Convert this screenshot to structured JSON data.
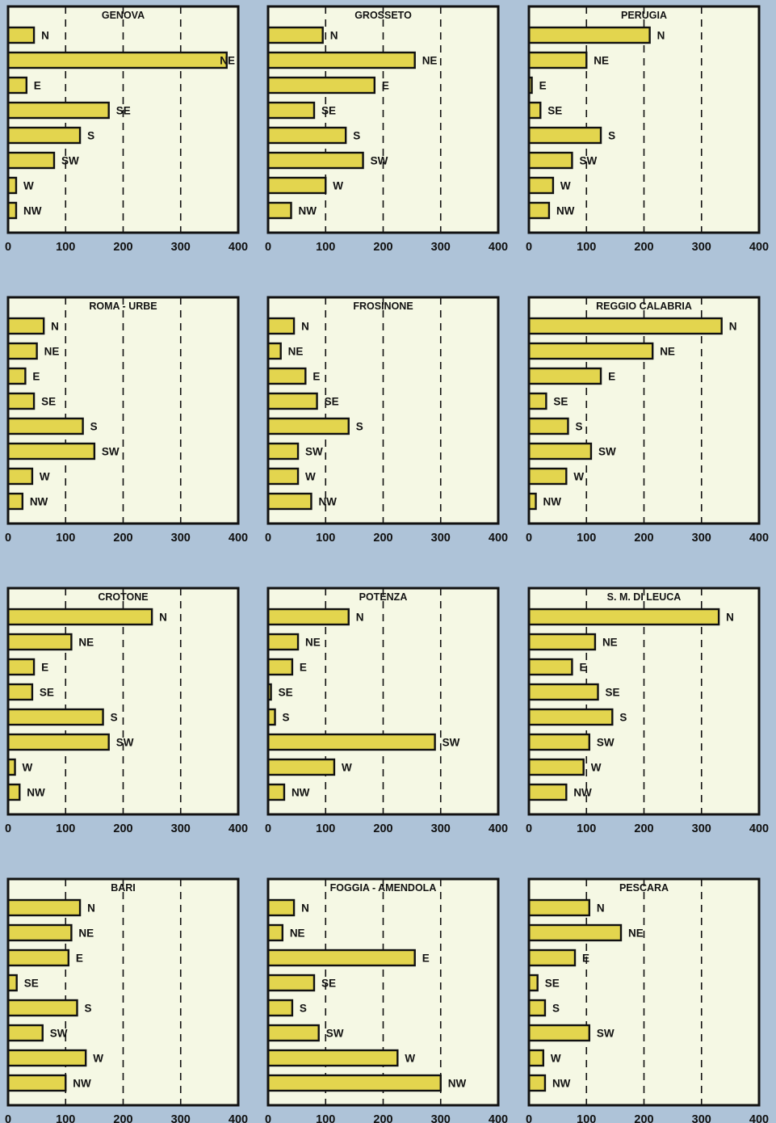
{
  "chart_data": [
    {
      "type": "bar",
      "title": "GENOVA",
      "categories": [
        "N",
        "NE",
        "E",
        "SE",
        "S",
        "SW",
        "W",
        "NW"
      ],
      "values": [
        45,
        380,
        32,
        175,
        125,
        80,
        14,
        14
      ],
      "xlim": [
        0,
        400
      ],
      "xticks": [
        0,
        100,
        200,
        300,
        400
      ],
      "grid": true
    },
    {
      "type": "bar",
      "title": "GROSSETO",
      "categories": [
        "N",
        "NE",
        "E",
        "SE",
        "S",
        "SW",
        "W",
        "NW"
      ],
      "values": [
        95,
        255,
        185,
        80,
        135,
        165,
        100,
        40
      ],
      "xlim": [
        0,
        400
      ],
      "xticks": [
        0,
        100,
        200,
        300,
        400
      ],
      "grid": true
    },
    {
      "type": "bar",
      "title": "PERUGIA",
      "categories": [
        "N",
        "NE",
        "E",
        "SE",
        "S",
        "SW",
        "W",
        "NW"
      ],
      "values": [
        210,
        100,
        5,
        20,
        125,
        75,
        42,
        35
      ],
      "xlim": [
        0,
        400
      ],
      "xticks": [
        0,
        100,
        200,
        300,
        400
      ],
      "grid": true
    },
    {
      "type": "bar",
      "title": "ROMA - URBE",
      "categories": [
        "N",
        "NE",
        "E",
        "SE",
        "S",
        "SW",
        "W",
        "NW"
      ],
      "values": [
        62,
        50,
        30,
        45,
        130,
        150,
        42,
        25
      ],
      "xlim": [
        0,
        400
      ],
      "xticks": [
        0,
        100,
        200,
        300,
        400
      ],
      "grid": true
    },
    {
      "type": "bar",
      "title": "FROSINONE",
      "categories": [
        "N",
        "NE",
        "E",
        "SE",
        "S",
        "SW",
        "W",
        "NW"
      ],
      "values": [
        45,
        22,
        65,
        85,
        140,
        52,
        52,
        75
      ],
      "xlim": [
        0,
        400
      ],
      "xticks": [
        0,
        100,
        200,
        300,
        400
      ],
      "grid": true
    },
    {
      "type": "bar",
      "title": "REGGIO CALABRIA",
      "categories": [
        "N",
        "NE",
        "E",
        "SE",
        "S",
        "SW",
        "W",
        "NW"
      ],
      "values": [
        335,
        215,
        125,
        30,
        68,
        108,
        65,
        12
      ],
      "xlim": [
        0,
        400
      ],
      "xticks": [
        0,
        100,
        200,
        300,
        400
      ],
      "grid": true
    },
    {
      "type": "bar",
      "title": "CROTONE",
      "categories": [
        "N",
        "NE",
        "E",
        "SE",
        "S",
        "SW",
        "W",
        "NW"
      ],
      "values": [
        250,
        110,
        45,
        42,
        165,
        175,
        12,
        20
      ],
      "xlim": [
        0,
        400
      ],
      "xticks": [
        0,
        100,
        200,
        300,
        400
      ],
      "grid": true
    },
    {
      "type": "bar",
      "title": "POTENZA",
      "categories": [
        "N",
        "NE",
        "E",
        "SE",
        "S",
        "SW",
        "W",
        "NW"
      ],
      "values": [
        140,
        52,
        42,
        5,
        12,
        290,
        115,
        28
      ],
      "xlim": [
        0,
        400
      ],
      "xticks": [
        0,
        100,
        200,
        300,
        400
      ],
      "grid": true
    },
    {
      "type": "bar",
      "title": "S. M. DI LEUCA",
      "categories": [
        "N",
        "NE",
        "E",
        "SE",
        "S",
        "SW",
        "W",
        "NW"
      ],
      "values": [
        330,
        115,
        75,
        120,
        145,
        105,
        95,
        65
      ],
      "xlim": [
        0,
        400
      ],
      "xticks": [
        0,
        100,
        200,
        300,
        400
      ],
      "grid": true
    },
    {
      "type": "bar",
      "title": "BARI",
      "categories": [
        "N",
        "NE",
        "E",
        "SE",
        "S",
        "SW",
        "W",
        "NW"
      ],
      "values": [
        125,
        110,
        105,
        15,
        120,
        60,
        135,
        100
      ],
      "xlim": [
        0,
        400
      ],
      "xticks": [
        0,
        100,
        200,
        300,
        400
      ],
      "grid": true
    },
    {
      "type": "bar",
      "title": "FOGGIA - AMENDOLA",
      "categories": [
        "N",
        "NE",
        "E",
        "SE",
        "S",
        "SW",
        "W",
        "NW"
      ],
      "values": [
        45,
        25,
        255,
        80,
        42,
        88,
        225,
        300
      ],
      "xlim": [
        0,
        400
      ],
      "xticks": [
        0,
        100,
        200,
        300,
        400
      ],
      "grid": true
    },
    {
      "type": "bar",
      "title": "PESCARA",
      "categories": [
        "N",
        "NE",
        "E",
        "SE",
        "S",
        "SW",
        "W",
        "NW"
      ],
      "values": [
        105,
        160,
        80,
        15,
        28,
        105,
        25,
        28
      ],
      "xlim": [
        0,
        400
      ],
      "xticks": [
        0,
        100,
        200,
        300,
        400
      ],
      "grid": true
    }
  ],
  "colors": {
    "background": "#aec3d8",
    "panel": "#f5f8e4",
    "bar": "#e3d54e",
    "bar_outline": "#111111",
    "grid": "#111111"
  }
}
